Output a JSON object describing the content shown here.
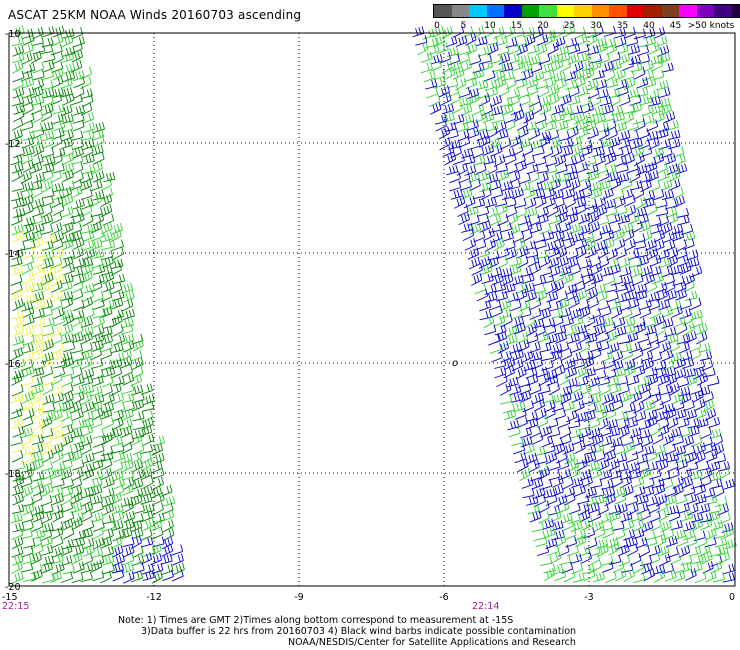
{
  "title": "ASCAT 25KM NOAA Winds 20160703 ascending",
  "legend": {
    "labels": [
      "0",
      "5",
      "10",
      "15",
      "20",
      "25",
      "30",
      "35",
      "40",
      "45",
      ">50 knots"
    ],
    "colors": [
      "#555555",
      "#888888",
      "#00c8ff",
      "#0070ff",
      "#0000c8",
      "#00a000",
      "#40e040",
      "#ffff00",
      "#ffd000",
      "#ff9000",
      "#ff5000",
      "#e00000",
      "#a02000",
      "#804020",
      "#ff00ff",
      "#8000c0",
      "#400080",
      "#200040"
    ]
  },
  "axes": {
    "lat_labels": [
      "-10",
      "-12",
      "-14",
      "-16",
      "-18",
      "-20"
    ],
    "lon_labels": [
      "-15",
      "-12",
      "-9",
      "-6",
      "-3",
      "0"
    ]
  },
  "times": {
    "left": "22:15",
    "right": "22:14"
  },
  "notes": {
    "line1": "Note: 1) Times are GMT 2)Times along bottom correspond to measurement at -15S",
    "line2": "3)Data buffer is 22 hrs from 20160703 4) Black wind barbs indicate possible contamination",
    "line3": "NOAA/NESDIS/Center for Satellite Applications and Research"
  },
  "island_label": "o",
  "swaths": [
    {
      "name": "west-swath",
      "dominant": "dark-green"
    },
    {
      "name": "east-swath",
      "dominant": "blue"
    }
  ],
  "barb_colors": {
    "dark-green": "#008000",
    "light-green": "#30d030",
    "blue": "#0000d0",
    "yellow": "#f0f040"
  }
}
